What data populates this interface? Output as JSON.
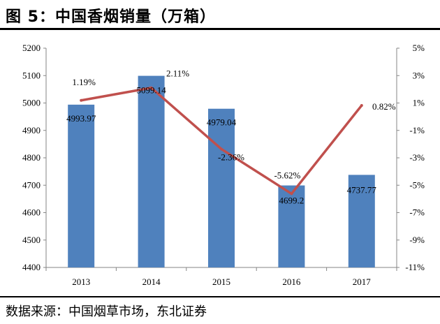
{
  "header": {
    "title": "图 5：中国香烟销量（万箱）"
  },
  "footer": {
    "source": "数据来源：中国烟草市场，东北证券"
  },
  "chart_data": {
    "type": "bar",
    "title": "",
    "categories": [
      "2013",
      "2014",
      "2015",
      "2016",
      "2017"
    ],
    "series": [
      {
        "type": "bar",
        "axis": "left",
        "values": [
          4993.97,
          5099.14,
          4979.04,
          4699.2,
          4737.77
        ],
        "labels": [
          "4993.97",
          "5099.14",
          "4979.04",
          "4699.2",
          "4737.77"
        ],
        "color": "#4f81bd"
      },
      {
        "type": "line",
        "axis": "right",
        "values": [
          1.19,
          2.11,
          -2.36,
          -5.62,
          0.82
        ],
        "labels": [
          "1.19%",
          "2.11%",
          "-2.36%",
          "-5.62%",
          "0.82%"
        ],
        "color": "#c0504d"
      }
    ],
    "y_left": {
      "min": 4400,
      "max": 5200,
      "ticks": [
        "4400",
        "4500",
        "4600",
        "4700",
        "4800",
        "4900",
        "5000",
        "5100",
        "5200"
      ]
    },
    "y_right": {
      "min": -11,
      "max": 5,
      "ticks": [
        "-11%",
        "-9%",
        "-7%",
        "-5%",
        "-3%",
        "-1%",
        "1%",
        "3%",
        "5%"
      ]
    },
    "grid": false,
    "legend": "none"
  }
}
